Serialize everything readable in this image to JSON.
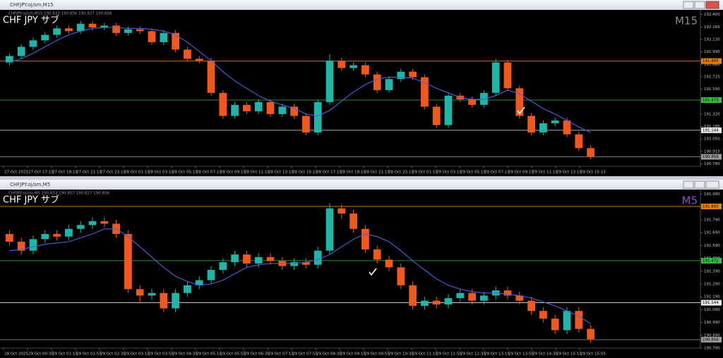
{
  "chart_data": [
    {
      "type": "candlestick",
      "window_title": "CHFJPY.oj/sm,M15",
      "info": "CHFJPY.oj/sm,M15 190.833 190.856 190.827 190.856",
      "title": "CHF JPY サブ",
      "timeframe": "M15",
      "timeframe_color": "#8c8c8c",
      "up_color": "#1fb5a8",
      "down_color": "#f0581e",
      "ylim": [
        190.753,
        192.428
      ],
      "yticks": [
        {
          "value": 190.78,
          "label": "190.780"
        },
        190.915,
        {
          "value": 191.05,
          "label": "191.050"
        },
        191.185,
        {
          "value": 191.32,
          "label": "191.320"
        },
        191.455,
        {
          "value": 191.59,
          "label": "191.590"
        },
        191.725,
        {
          "value": 191.86,
          "label": "191.860"
        },
        191.995,
        {
          "value": 192.13,
          "label": "192.130"
        },
        192.265,
        {
          "value": 192.4,
          "label": "192.400"
        }
      ],
      "levels": [
        {
          "value": 191.895,
          "color": "#e8820c"
        },
        {
          "value": 191.472,
          "color": "#2fc23a"
        },
        {
          "value": 191.144,
          "color": "#e6e6e6"
        },
        {
          "value": 190.856,
          "color": "#9a9a9a"
        }
      ],
      "x_tick_labels": [
        "27 Oct 2025",
        "27 Oct 17:15",
        "27 Oct 19:15",
        "27 Oct 21:15",
        "27 Oct 23:15",
        "28 Oct 01:15",
        "28 Oct 03:15",
        "28 Oct 05:15",
        "28 Oct 07:15",
        "28 Oct 09:15",
        "28 Oct 11:15",
        "28 Oct 13:15",
        "28 Oct 15:15",
        "28 Oct 17:15",
        "28 Oct 19:15",
        "28 Oct 21:15",
        "28 Oct 23:15",
        "29 Oct 01:15",
        "29 Oct 03:15",
        "29 Oct 05:15",
        "29 Oct 07:15",
        "29 Oct 09:15",
        "29 Oct 11:15",
        "29 Oct 13:15",
        "29 Oct 15:15"
      ],
      "open": [
        191.88,
        191.95,
        192.05,
        192.12,
        192.18,
        192.25,
        192.22,
        192.3,
        192.26,
        192.28,
        192.2,
        192.24,
        192.22,
        192.1,
        192.2,
        192.02,
        191.92,
        191.9,
        191.55,
        191.3,
        191.42,
        191.35,
        191.45,
        191.32,
        191.4,
        191.3,
        191.12,
        191.45,
        191.9,
        191.82,
        191.85,
        191.75,
        191.58,
        191.7,
        191.78,
        191.72,
        191.4,
        191.2,
        191.52,
        191.48,
        191.42,
        191.55,
        191.88,
        191.6,
        191.3,
        191.12,
        191.22,
        191.25,
        191.1,
        190.95
      ],
      "high": [
        191.98,
        192.08,
        192.15,
        192.21,
        192.28,
        192.28,
        192.33,
        192.33,
        192.31,
        192.31,
        192.27,
        192.27,
        192.25,
        192.23,
        192.23,
        192.05,
        191.95,
        191.93,
        191.58,
        191.45,
        191.45,
        191.48,
        191.48,
        191.43,
        191.43,
        191.33,
        191.48,
        191.97,
        191.93,
        191.88,
        191.88,
        191.78,
        191.73,
        191.81,
        191.81,
        191.75,
        191.43,
        191.55,
        191.55,
        191.51,
        191.58,
        191.92,
        191.91,
        191.63,
        191.33,
        191.25,
        191.28,
        191.28,
        191.13,
        190.98
      ],
      "low": [
        191.85,
        191.92,
        192.02,
        192.09,
        192.15,
        192.19,
        192.19,
        192.23,
        192.23,
        192.17,
        192.17,
        192.19,
        192.07,
        192.07,
        191.99,
        191.89,
        191.87,
        191.52,
        191.27,
        191.27,
        191.32,
        191.32,
        191.29,
        191.29,
        191.27,
        191.09,
        191.09,
        191.42,
        191.79,
        191.79,
        191.72,
        191.55,
        191.55,
        191.67,
        191.69,
        191.37,
        191.17,
        191.17,
        191.45,
        191.39,
        191.39,
        191.52,
        191.57,
        191.27,
        191.09,
        191.09,
        191.19,
        191.07,
        190.92,
        190.83
      ],
      "close": [
        191.95,
        192.05,
        192.12,
        192.18,
        192.25,
        192.22,
        192.3,
        192.26,
        192.28,
        192.2,
        192.24,
        192.22,
        192.1,
        192.2,
        192.02,
        191.92,
        191.9,
        191.55,
        191.3,
        191.42,
        191.35,
        191.45,
        191.32,
        191.4,
        191.3,
        191.12,
        191.45,
        191.9,
        191.82,
        191.85,
        191.75,
        191.58,
        191.7,
        191.78,
        191.72,
        191.4,
        191.2,
        191.52,
        191.48,
        191.42,
        191.55,
        191.88,
        191.6,
        191.3,
        191.12,
        191.22,
        191.25,
        191.1,
        190.95,
        190.86
      ],
      "ma": {
        "color": "#4a63e0",
        "values": [
          191.88,
          191.92,
          191.98,
          192.05,
          192.12,
          192.18,
          192.22,
          192.25,
          192.26,
          192.26,
          192.25,
          192.25,
          192.24,
          192.22,
          192.18,
          192.1,
          192.0,
          191.9,
          191.78,
          191.68,
          191.6,
          191.52,
          191.46,
          191.42,
          191.38,
          191.32,
          191.3,
          191.36,
          191.46,
          191.56,
          191.64,
          191.7,
          191.72,
          191.72,
          191.71,
          191.66,
          191.6,
          191.55,
          191.5,
          191.48,
          191.48,
          191.52,
          191.58,
          191.54,
          191.46,
          191.38,
          191.32,
          191.25,
          191.18,
          191.12
        ]
      }
    },
    {
      "type": "candlestick",
      "window_title": "CHFJPY.oj/sm,M5",
      "info": "CHFJPY.oj/sm,M5 190.833 190.857 190.827 190.856",
      "title": "CHF JPY サブ",
      "timeframe": "M5",
      "timeframe_color": "#8a4ec8",
      "up_color": "#1fb5a8",
      "down_color": "#f0581e",
      "ylim": [
        190.79,
        192.01
      ],
      "yticks": [
        {
          "value": 190.79,
          "label": "190.790"
        },
        {
          "value": 190.89,
          "label": "190.890"
        },
        {
          "value": 190.99,
          "label": "190.990"
        },
        {
          "value": 191.09,
          "label": "191.090"
        },
        {
          "value": 191.19,
          "label": "191.190"
        },
        {
          "value": 191.29,
          "label": "191.290"
        },
        {
          "value": 191.39,
          "label": "191.390"
        },
        {
          "value": 191.49,
          "label": "191.490"
        },
        {
          "value": 191.59,
          "label": "191.590"
        },
        {
          "value": 191.69,
          "label": "191.690"
        },
        {
          "value": 191.79,
          "label": "191.790"
        },
        {
          "value": 191.89,
          "label": "191.890"
        },
        {
          "value": 191.99,
          "label": "191.990"
        }
      ],
      "levels": [
        {
          "value": 191.895,
          "color": "#e8820c"
        },
        {
          "value": 191.472,
          "color": "#2fc23a"
        },
        {
          "value": 191.144,
          "color": "#e6e6e6"
        },
        {
          "value": 190.856,
          "color": "#9a9a9a"
        }
      ],
      "x_tick_labels": [
        "28 Oct 2025",
        "29 Oct 00:35",
        "29 Oct 01:15",
        "29 Oct 01:55",
        "29 Oct 02:35",
        "29 Oct 03:15",
        "29 Oct 03:55",
        "29 Oct 04:35",
        "29 Oct 05:15",
        "29 Oct 05:55",
        "29 Oct 06:35",
        "29 Oct 07:15",
        "29 Oct 07:55",
        "29 Oct 08:35",
        "29 Oct 09:15",
        "29 Oct 09:55",
        "29 Oct 10:35",
        "29 Oct 11:15",
        "29 Oct 11:55",
        "29 Oct 12:35",
        "29 Oct 13:15",
        "29 Oct 13:55",
        "29 Oct 14:35",
        "29 Oct 15:15",
        "29 Oct 15:55"
      ],
      "open": [
        191.68,
        191.62,
        191.55,
        191.64,
        191.68,
        191.66,
        191.72,
        191.75,
        191.78,
        191.76,
        191.68,
        191.25,
        191.2,
        191.22,
        191.1,
        191.22,
        191.28,
        191.32,
        191.4,
        191.46,
        191.52,
        191.45,
        191.5,
        191.47,
        191.43,
        191.46,
        191.44,
        191.55,
        191.88,
        191.84,
        191.72,
        191.56,
        191.48,
        191.42,
        191.28,
        191.12,
        191.16,
        191.13,
        191.18,
        191.22,
        191.16,
        191.2,
        191.24,
        191.2,
        191.16,
        191.08,
        191.02,
        190.93,
        191.08,
        190.94
      ],
      "high": [
        191.71,
        191.65,
        191.67,
        191.71,
        191.71,
        191.75,
        191.78,
        191.81,
        191.81,
        191.79,
        191.71,
        191.28,
        191.25,
        191.25,
        191.25,
        191.31,
        191.35,
        191.43,
        191.49,
        191.55,
        191.55,
        191.53,
        191.53,
        191.5,
        191.49,
        191.49,
        191.58,
        191.92,
        191.91,
        191.87,
        191.75,
        191.59,
        191.51,
        191.45,
        191.31,
        191.19,
        191.19,
        191.21,
        191.25,
        191.25,
        191.23,
        191.27,
        191.27,
        191.23,
        191.19,
        191.11,
        191.05,
        191.11,
        191.11,
        190.97
      ],
      "low": [
        191.59,
        191.52,
        191.52,
        191.61,
        191.63,
        191.63,
        191.69,
        191.72,
        191.73,
        191.65,
        191.22,
        191.14,
        191.17,
        191.07,
        191.07,
        191.19,
        191.25,
        191.29,
        191.37,
        191.43,
        191.42,
        191.42,
        191.44,
        191.4,
        191.4,
        191.41,
        191.41,
        191.52,
        191.8,
        191.69,
        191.53,
        191.45,
        191.39,
        191.25,
        191.09,
        191.09,
        191.1,
        191.1,
        191.15,
        191.13,
        191.13,
        191.17,
        191.17,
        191.13,
        191.05,
        190.99,
        190.9,
        190.9,
        190.91,
        190.83
      ],
      "close": [
        191.62,
        191.55,
        191.64,
        191.68,
        191.66,
        191.72,
        191.75,
        191.78,
        191.76,
        191.68,
        191.25,
        191.2,
        191.22,
        191.1,
        191.22,
        191.28,
        191.32,
        191.4,
        191.46,
        191.52,
        191.45,
        191.5,
        191.47,
        191.43,
        191.46,
        191.44,
        191.55,
        191.88,
        191.84,
        191.72,
        191.56,
        191.48,
        191.42,
        191.28,
        191.12,
        191.16,
        191.13,
        191.18,
        191.22,
        191.16,
        191.2,
        191.24,
        191.2,
        191.16,
        191.08,
        191.02,
        190.93,
        191.08,
        190.94,
        190.86
      ],
      "ma": {
        "color": "#4a63e0",
        "values": [
          191.55,
          191.56,
          191.58,
          191.6,
          191.61,
          191.62,
          191.65,
          191.68,
          191.72,
          191.72,
          191.66,
          191.58,
          191.5,
          191.42,
          191.35,
          191.31,
          191.28,
          191.29,
          191.32,
          191.37,
          191.42,
          191.44,
          191.45,
          191.45,
          191.45,
          191.46,
          191.48,
          191.52,
          191.58,
          191.64,
          191.68,
          191.66,
          191.62,
          191.55,
          191.47,
          191.4,
          191.33,
          191.28,
          191.25,
          191.23,
          191.22,
          191.22,
          191.21,
          191.2,
          191.18,
          191.15,
          191.12,
          191.08,
          191.04,
          190.98
        ]
      }
    }
  ]
}
